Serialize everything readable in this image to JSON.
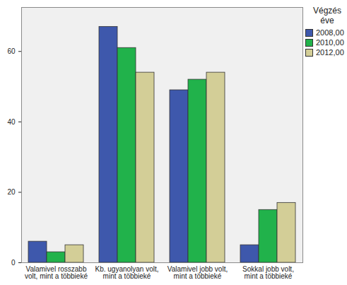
{
  "chart_data": {
    "type": "bar",
    "categories": [
      "Valamivel rosszabb\nvolt, mint a többieké",
      "Kb. ugyanolyan volt,\nmint a többieké",
      "Valamivel jobb volt,\nmint a többieké",
      "Sokkal jobb volt,\nmint a többieké"
    ],
    "series": [
      {
        "name": "2008,00",
        "color": "#3e58ac",
        "values": [
          6,
          67,
          49,
          5
        ]
      },
      {
        "name": "2010,00",
        "color": "#21b24b",
        "values": [
          3,
          61,
          52,
          15
        ]
      },
      {
        "name": "2012,00",
        "color": "#d3ce97",
        "values": [
          5,
          54,
          54,
          17
        ]
      }
    ],
    "legend_title": "Végzés éve",
    "legend": "right",
    "ylim": [
      0,
      72.5
    ],
    "yticks": [
      0,
      20,
      40,
      60
    ],
    "grid": false
  }
}
